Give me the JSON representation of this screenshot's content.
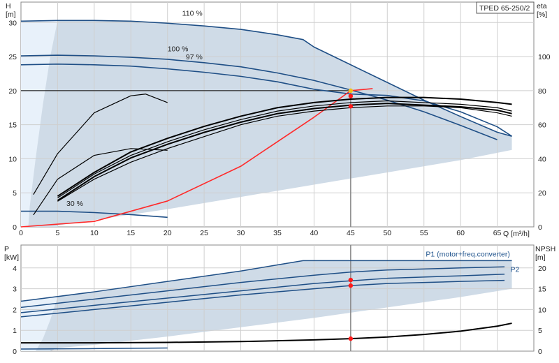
{
  "chart_data": [
    {
      "type": "line",
      "title": "TPED 65-250/2",
      "xlabel": "Q [m³/h]",
      "ylabel": "H [m]",
      "y2label": "eta [%]",
      "xlim": [
        0,
        70
      ],
      "ylim": [
        0,
        33
      ],
      "y2lim": [
        0,
        132
      ],
      "xticks": [
        "0",
        "5",
        "10",
        "15",
        "20",
        "25",
        "30",
        "35",
        "40",
        "45",
        "50",
        "55",
        "60",
        "65"
      ],
      "yticks": [
        "0",
        "5",
        "10",
        "15",
        "20",
        "25",
        "30"
      ],
      "y2ticks": [
        "0",
        "20",
        "40",
        "60",
        "80",
        "100"
      ],
      "grid": true,
      "duty_point": {
        "q": 45,
        "h": 20
      },
      "curve_labels": [
        {
          "text": "110 %",
          "q": 22,
          "h": 31
        },
        {
          "text": "100 %",
          "q": 20,
          "h": 25.8
        },
        {
          "text": "97 %",
          "q": 22.5,
          "h": 24.6
        },
        {
          "text": "30 %",
          "q": 6.2,
          "h": 3.1
        }
      ],
      "series": [
        {
          "name": "110 %",
          "axis": "H",
          "color": "#1f4f86",
          "x": [
            0,
            5,
            10,
            15,
            20,
            25,
            30,
            35,
            38.5,
            40,
            45,
            50,
            55,
            60,
            65,
            67
          ],
          "values": [
            30.2,
            30.3,
            30.3,
            30.2,
            29.9,
            29.5,
            29,
            28.2,
            27.5,
            26.4,
            23.8,
            21.2,
            18.6,
            16.2,
            13.9,
            13.3
          ]
        },
        {
          "name": "100 %",
          "axis": "H",
          "color": "#1f4f86",
          "x": [
            0,
            5,
            10,
            15,
            20,
            25,
            30,
            35,
            40,
            45,
            50,
            55,
            60,
            65
          ],
          "values": [
            25.1,
            25.2,
            25.1,
            24.9,
            24.6,
            24.1,
            23.5,
            22.6,
            21.5,
            20.1,
            18.6,
            16.9,
            14.9,
            12.8
          ]
        },
        {
          "name": "97 %",
          "axis": "H",
          "color": "#1f4f86",
          "x": [
            0,
            5,
            10,
            15,
            20,
            25,
            30,
            35,
            40,
            45,
            50,
            55,
            60,
            65,
            67
          ],
          "values": [
            23.8,
            23.9,
            23.8,
            23.6,
            23.2,
            22.7,
            22.1,
            21.3,
            20.2,
            19.5,
            19.3,
            18.5,
            16.9,
            14.7,
            13.3
          ]
        },
        {
          "name": "30 %",
          "axis": "H",
          "color": "#1f4f86",
          "x": [
            0,
            5,
            10,
            15,
            20
          ],
          "values": [
            2.3,
            2.3,
            2.1,
            1.8,
            1.4
          ]
        },
        {
          "name": "",
          "axis": "H",
          "color": "#ff2a2a",
          "x": [
            0,
            10,
            20,
            30,
            40,
            45,
            48
          ],
          "values": [
            0,
            0.8,
            3.8,
            8.9,
            16.1,
            20.0,
            20.3
          ]
        },
        {
          "name": "",
          "axis": "eta",
          "color": "#000000",
          "x": [
            5,
            10,
            15,
            20,
            25,
            30,
            35,
            40,
            45,
            50,
            55,
            60,
            65,
            67
          ],
          "values": [
            15,
            28,
            38,
            46,
            53,
            60,
            65,
            68,
            70,
            71,
            71,
            70,
            67,
            65
          ]
        },
        {
          "name": "",
          "axis": "eta",
          "color": "#000000",
          "x": [
            5,
            10,
            15,
            20,
            25,
            30,
            35,
            40,
            45,
            50,
            55,
            60,
            65,
            67
          ],
          "values": [
            17,
            31,
            42,
            50,
            57,
            63,
            68,
            71,
            73,
            74,
            73,
            72,
            70,
            68
          ]
        },
        {
          "name": "",
          "axis": "eta",
          "color": "#000000",
          "x": [
            5,
            10,
            15,
            20,
            25,
            30,
            35,
            40,
            45,
            50,
            55,
            60,
            65,
            67
          ],
          "values": [
            18,
            32,
            44,
            52,
            59,
            65,
            70,
            73,
            75,
            76,
            76,
            75,
            73,
            72
          ]
        },
        {
          "name": "",
          "axis": "eta",
          "color": "#000000",
          "x": [
            1.7,
            5,
            10,
            15,
            17,
            20
          ],
          "values": [
            19,
            43,
            67,
            77,
            78,
            73
          ]
        },
        {
          "name": "",
          "axis": "eta",
          "color": "#000000",
          "x": [
            1.7,
            5,
            10,
            15,
            20
          ],
          "values": [
            7,
            28,
            42,
            46,
            45
          ]
        }
      ],
      "markers": [
        {
          "q": 45,
          "h": 20,
          "color": "#f2c018"
        },
        {
          "q": 45,
          "h": 19.2,
          "color": "#ff1a1a"
        },
        {
          "q": 45,
          "h": 17.7,
          "color": "#ff1a1a"
        }
      ]
    },
    {
      "type": "line",
      "xlabel": "",
      "ylabel": "P [kW]",
      "y2label": "NPSH [m]",
      "xlim": [
        0,
        70
      ],
      "ylim": [
        0,
        5.1
      ],
      "y2lim": [
        0,
        25.5
      ],
      "yticks": [
        "0",
        "1",
        "2",
        "3",
        "4"
      ],
      "y2ticks": [
        "0",
        "5",
        "10",
        "15",
        "20"
      ],
      "grid": true,
      "curve_labels": [
        {
          "text": "P1 (motor+freq.converter)",
          "q": 61,
          "h": 4.55
        },
        {
          "text": "P2",
          "q": 66.8,
          "h": 3.8
        }
      ],
      "series": [
        {
          "name": "P1 (motor+freq.converter)",
          "axis": "P",
          "color": "#1f4f86",
          "x": [
            0,
            10,
            20,
            30,
            38.5,
            50,
            60,
            67
          ],
          "values": [
            2.4,
            2.85,
            3.35,
            3.85,
            4.35,
            4.35,
            4.35,
            4.35
          ]
        },
        {
          "name": "",
          "axis": "P",
          "color": "#1f4f86",
          "x": [
            0,
            10,
            20,
            30,
            40,
            45,
            50,
            60,
            66
          ],
          "values": [
            2.1,
            2.5,
            2.9,
            3.3,
            3.65,
            3.8,
            3.9,
            4.0,
            4.05
          ]
        },
        {
          "name": "P2",
          "axis": "P",
          "color": "#1f4f86",
          "x": [
            0,
            10,
            20,
            30,
            40,
            45,
            50,
            60,
            66
          ],
          "values": [
            1.85,
            2.2,
            2.55,
            2.9,
            3.25,
            3.38,
            3.5,
            3.62,
            3.7
          ]
        },
        {
          "name": "",
          "axis": "P",
          "color": "#1f4f86",
          "x": [
            0,
            10,
            20,
            30,
            40,
            45,
            50,
            60,
            66
          ],
          "values": [
            1.65,
            2.0,
            2.35,
            2.7,
            3.0,
            3.15,
            3.25,
            3.35,
            3.4
          ]
        },
        {
          "name": "",
          "axis": "NPSH",
          "color": "#000000",
          "x": [
            0,
            10,
            20,
            30,
            40,
            45,
            50,
            55,
            60,
            65,
            67
          ],
          "values": [
            2.0,
            2.0,
            2.1,
            2.3,
            2.7,
            3.0,
            3.4,
            4.0,
            4.8,
            6.0,
            6.7
          ]
        },
        {
          "name": "",
          "axis": "P",
          "color": "#1f4f86",
          "x": [
            0,
            10,
            20
          ],
          "values": [
            0.1,
            0.12,
            0.15
          ]
        }
      ],
      "markers": [
        {
          "q": 45,
          "h": 3.42,
          "color": "#ff1a1a"
        },
        {
          "q": 45,
          "h": 3.15,
          "color": "#ff1a1a"
        },
        {
          "q": 45,
          "h": 0.6,
          "color": "#ff1a1a"
        }
      ]
    }
  ]
}
